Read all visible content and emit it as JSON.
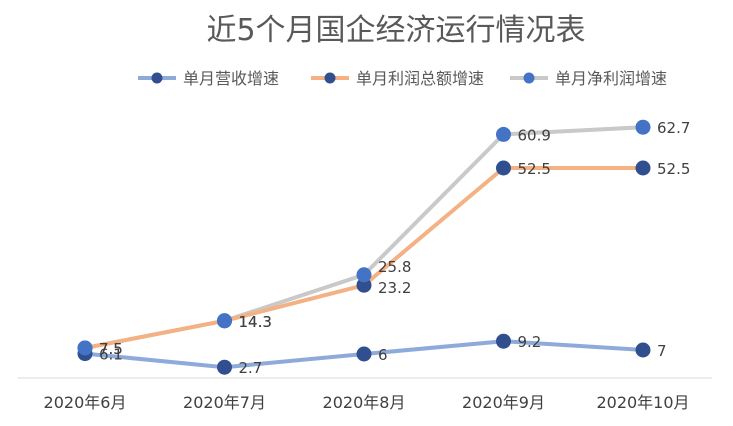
{
  "chart_data": {
    "type": "line",
    "title": "近5个月国企经济运行情况表",
    "categories": [
      "2020年6月",
      "2020年7月",
      "2020年8月",
      "2020年9月",
      "2020年10月"
    ],
    "ylim": [
      0,
      70
    ],
    "grid": false,
    "legend_position": "top",
    "series": [
      {
        "name": "单月营收增速",
        "values": [
          6.1,
          2.7,
          6,
          9.2,
          7
        ],
        "labels": [
          "6.1",
          "2.7",
          "6",
          "9.2",
          "7"
        ],
        "line_color": "#8eaadb",
        "marker_color": "#2f4f8f"
      },
      {
        "name": "单月利润总额增速",
        "values": [
          7.5,
          14.3,
          23.2,
          52.5,
          52.5
        ],
        "labels": [
          "7.5",
          "14.3",
          "23.2",
          "52.5",
          "52.5"
        ],
        "line_color": "#f4b183",
        "marker_color": "#2f4f8f"
      },
      {
        "name": "单月净利润增速",
        "values": [
          7.5,
          14.3,
          25.8,
          60.9,
          62.7
        ],
        "labels": [
          "7.5",
          "14.3",
          "25.8",
          "60.9",
          "62.7"
        ],
        "line_color": "#c9c9c9",
        "marker_color": "#4472c4"
      }
    ]
  }
}
